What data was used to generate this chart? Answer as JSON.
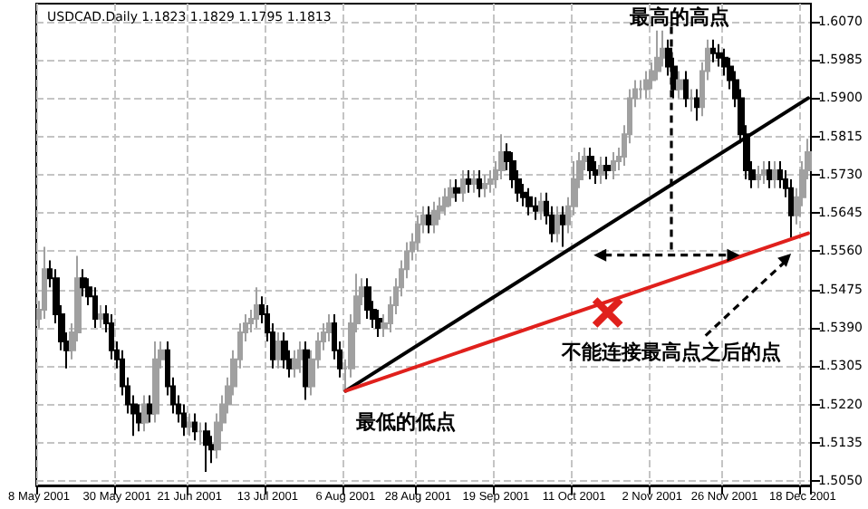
{
  "chart_data": {
    "type": "candlestick",
    "title": "USDCAD.Daily 1.1823 1.1829 1.1795 1.1813",
    "categories": [
      "8 May 2001",
      null,
      null,
      null,
      null,
      null,
      null,
      null,
      null,
      null,
      null,
      null,
      null,
      null,
      "30 May 2001",
      null,
      null,
      null,
      null,
      null,
      null,
      null,
      null,
      null,
      null,
      null,
      null,
      "21 Jun 2001",
      null,
      null,
      null,
      null,
      null,
      null,
      null,
      null,
      null,
      null,
      null,
      null,
      null,
      "13 Jul 2001",
      null,
      null,
      null,
      null,
      null,
      null,
      null,
      null,
      null,
      null,
      null,
      null,
      null,
      "6 Aug 2001",
      null,
      null,
      null,
      null,
      null,
      null,
      null,
      null,
      null,
      null,
      null,
      null,
      "28 Aug 2001",
      null,
      null,
      null,
      null,
      null,
      null,
      null,
      null,
      null,
      null,
      null,
      null,
      null,
      "19 Sep 2001",
      null,
      null,
      null,
      null,
      null,
      null,
      null,
      null,
      null,
      null,
      null,
      null,
      null,
      "11 Oct 2001",
      null,
      null,
      null,
      null,
      null,
      null,
      null,
      null,
      null,
      null,
      null,
      null,
      null,
      "2 Nov 2001",
      null,
      null,
      null,
      null,
      null,
      null,
      null,
      null,
      null,
      null,
      null,
      null,
      "26 Nov 2001",
      null,
      null,
      null,
      null,
      null,
      null,
      null,
      null,
      null,
      null,
      null,
      null,
      null,
      "18 Dec 2001",
      null
    ],
    "series": [
      {
        "type": "candlestick",
        "colors": [
          "#a0a0a0",
          "#a0a0a0",
          "#000000",
          "#000000",
          "#000000",
          "#000000",
          "#a0a0a0",
          "#a0a0a0",
          "#000000",
          "#000000",
          "#000000",
          "#a0a0a0",
          "#000000",
          "#000000",
          "#000000",
          "#000000",
          "#000000",
          "#000000",
          "#000000",
          "#a0a0a0",
          "#000000",
          "#a0a0a0",
          "#a0a0a0",
          "#000000",
          "#000000",
          "#000000",
          "#000000",
          "#a0a0a0",
          "#000000",
          "#a0a0a0",
          "#000000",
          "#000000",
          "#a0a0a0",
          "#a0a0a0",
          "#a0a0a0",
          "#a0a0a0",
          "#a0a0a0",
          "#a0a0a0",
          "#a0a0a0",
          "#a0a0a0",
          "#000000",
          "#000000",
          "#000000",
          "#a0a0a0",
          "#000000",
          "#000000",
          "#a0a0a0",
          "#a0a0a0",
          "#000000",
          "#a0a0a0",
          "#a0a0a0",
          "#a0a0a0",
          "#a0a0a0",
          "#000000",
          "#000000",
          "#a0a0a0",
          "#a0a0a0",
          "#a0a0a0",
          "#a0a0a0",
          "#000000",
          "#000000",
          "#000000",
          "#a0a0a0",
          "#a0a0a0",
          "#a0a0a0",
          "#a0a0a0",
          "#a0a0a0",
          "#a0a0a0",
          "#a0a0a0",
          "#a0a0a0",
          "#000000",
          "#a0a0a0",
          "#a0a0a0",
          "#a0a0a0",
          "#a0a0a0",
          "#000000",
          "#a0a0a0",
          "#000000",
          "#a0a0a0",
          "#000000",
          "#a0a0a0",
          "#a0a0a0",
          "#a0a0a0",
          "#a0a0a0",
          "#000000",
          "#000000",
          "#000000",
          "#000000",
          "#000000",
          "#000000",
          "#a0a0a0",
          "#000000",
          "#000000",
          "#a0a0a0",
          "#000000",
          "#a0a0a0",
          "#a0a0a0",
          "#a0a0a0",
          "#a0a0a0",
          "#000000",
          "#000000",
          "#a0a0a0",
          "#000000",
          "#a0a0a0",
          "#a0a0a0",
          "#a0a0a0",
          "#a0a0a0",
          "#a0a0a0",
          "#a0a0a0",
          "#a0a0a0",
          "#a0a0a0",
          "#a0a0a0",
          "#a0a0a0",
          "#000000",
          "#000000",
          "#a0a0a0",
          "#000000",
          "#a0a0a0",
          "#000000",
          "#a0a0a0",
          "#a0a0a0",
          "#000000",
          "#000000",
          "#000000",
          "#000000",
          "#000000",
          "#000000",
          "#000000",
          "#000000",
          "#a0a0a0",
          "#a0a0a0",
          "#000000",
          "#a0a0a0",
          "#000000",
          "#000000",
          "#000000",
          "#a0a0a0",
          "#a0a0a0",
          "#a0a0a0"
        ],
        "ohlc": [
          [
            1.541,
            1.545,
            1.539,
            1.543
          ],
          [
            1.543,
            1.557,
            1.541,
            1.552
          ],
          [
            1.552,
            1.554,
            1.548,
            1.55
          ],
          [
            1.55,
            1.552,
            1.54,
            1.542
          ],
          [
            1.542,
            1.544,
            1.534,
            1.536
          ],
          [
            1.536,
            1.538,
            1.53,
            1.534
          ],
          [
            1.534,
            1.54,
            1.532,
            1.538
          ],
          [
            1.538,
            1.555,
            1.536,
            1.55
          ],
          [
            1.55,
            1.552,
            1.546,
            1.548
          ],
          [
            1.548,
            1.55,
            1.544,
            1.546
          ],
          [
            1.546,
            1.548,
            1.539,
            1.541
          ],
          [
            1.541,
            1.544,
            1.539,
            1.542
          ],
          [
            1.542,
            1.544,
            1.538,
            1.54
          ],
          [
            1.54,
            1.542,
            1.532,
            1.534
          ],
          [
            1.534,
            1.536,
            1.53,
            1.532
          ],
          [
            1.532,
            1.534,
            1.524,
            1.526
          ],
          [
            1.526,
            1.528,
            1.52,
            1.522
          ],
          [
            1.522,
            1.524,
            1.515,
            1.52
          ],
          [
            1.52,
            1.522,
            1.516,
            1.518
          ],
          [
            1.518,
            1.524,
            1.516,
            1.522
          ],
          [
            1.522,
            1.524,
            1.518,
            1.52
          ],
          [
            1.52,
            1.536,
            1.518,
            1.532
          ],
          [
            1.532,
            1.536,
            1.53,
            1.534
          ],
          [
            1.534,
            1.536,
            1.524,
            1.526
          ],
          [
            1.526,
            1.528,
            1.52,
            1.522
          ],
          [
            1.522,
            1.524,
            1.518,
            1.52
          ],
          [
            1.52,
            1.522,
            1.515,
            1.517
          ],
          [
            1.517,
            1.52,
            1.515,
            1.518
          ],
          [
            1.518,
            1.52,
            1.514,
            1.516
          ],
          [
            1.516,
            1.518,
            1.513,
            1.516
          ],
          [
            1.516,
            1.518,
            1.507,
            1.513
          ],
          [
            1.513,
            1.515,
            1.509,
            1.512
          ],
          [
            1.512,
            1.52,
            1.51,
            1.518
          ],
          [
            1.518,
            1.524,
            1.516,
            1.522
          ],
          [
            1.522,
            1.528,
            1.52,
            1.526
          ],
          [
            1.526,
            1.534,
            1.524,
            1.532
          ],
          [
            1.532,
            1.54,
            1.53,
            1.538
          ],
          [
            1.538,
            1.542,
            1.536,
            1.54
          ],
          [
            1.54,
            1.543,
            1.538,
            1.541
          ],
          [
            1.541,
            1.548,
            1.539,
            1.544
          ],
          [
            1.544,
            1.546,
            1.54,
            1.542
          ],
          [
            1.542,
            1.544,
            1.536,
            1.538
          ],
          [
            1.538,
            1.54,
            1.53,
            1.532
          ],
          [
            1.532,
            1.538,
            1.53,
            1.536
          ],
          [
            1.536,
            1.538,
            1.53,
            1.532
          ],
          [
            1.532,
            1.534,
            1.528,
            1.53
          ],
          [
            1.53,
            1.534,
            1.528,
            1.532
          ],
          [
            1.532,
            1.536,
            1.529,
            1.534
          ],
          [
            1.534,
            1.536,
            1.523,
            1.526
          ],
          [
            1.526,
            1.534,
            1.524,
            1.532
          ],
          [
            1.532,
            1.538,
            1.53,
            1.536
          ],
          [
            1.536,
            1.54,
            1.534,
            1.538
          ],
          [
            1.538,
            1.542,
            1.536,
            1.54
          ],
          [
            1.54,
            1.542,
            1.532,
            1.534
          ],
          [
            1.534,
            1.536,
            1.528,
            1.53
          ],
          [
            1.53,
            1.532,
            1.525,
            1.53
          ],
          [
            1.53,
            1.542,
            1.528,
            1.54
          ],
          [
            1.54,
            1.551,
            1.538,
            1.546
          ],
          [
            1.546,
            1.55,
            1.544,
            1.548
          ],
          [
            1.548,
            1.55,
            1.541,
            1.543
          ],
          [
            1.543,
            1.545,
            1.539,
            1.541
          ],
          [
            1.541,
            1.543,
            1.537,
            1.539
          ],
          [
            1.539,
            1.542,
            1.537,
            1.54
          ],
          [
            1.54,
            1.546,
            1.538,
            1.544
          ],
          [
            1.544,
            1.55,
            1.542,
            1.548
          ],
          [
            1.548,
            1.554,
            1.546,
            1.552
          ],
          [
            1.552,
            1.558,
            1.55,
            1.556
          ],
          [
            1.556,
            1.56,
            1.554,
            1.558
          ],
          [
            1.558,
            1.564,
            1.556,
            1.562
          ],
          [
            1.562,
            1.566,
            1.56,
            1.564
          ],
          [
            1.564,
            1.566,
            1.56,
            1.562
          ],
          [
            1.562,
            1.567,
            1.56,
            1.565
          ],
          [
            1.565,
            1.568,
            1.563,
            1.566
          ],
          [
            1.566,
            1.57,
            1.564,
            1.568
          ],
          [
            1.568,
            1.572,
            1.566,
            1.57
          ],
          [
            1.57,
            1.572,
            1.567,
            1.569
          ],
          [
            1.569,
            1.574,
            1.567,
            1.572
          ],
          [
            1.572,
            1.574,
            1.569,
            1.571
          ],
          [
            1.571,
            1.574,
            1.569,
            1.572
          ],
          [
            1.572,
            1.574,
            1.568,
            1.57
          ],
          [
            1.57,
            1.573,
            1.568,
            1.571
          ],
          [
            1.571,
            1.574,
            1.569,
            1.572
          ],
          [
            1.572,
            1.576,
            1.57,
            1.574
          ],
          [
            1.574,
            1.582,
            1.572,
            1.578
          ],
          [
            1.578,
            1.58,
            1.574,
            1.576
          ],
          [
            1.576,
            1.578,
            1.57,
            1.572
          ],
          [
            1.572,
            1.574,
            1.567,
            1.569
          ],
          [
            1.569,
            1.571,
            1.566,
            1.568
          ],
          [
            1.568,
            1.57,
            1.564,
            1.566
          ],
          [
            1.566,
            1.568,
            1.563,
            1.565
          ],
          [
            1.565,
            1.569,
            1.563,
            1.567
          ],
          [
            1.567,
            1.569,
            1.562,
            1.564
          ],
          [
            1.564,
            1.566,
            1.558,
            1.56
          ],
          [
            1.56,
            1.566,
            1.558,
            1.564
          ],
          [
            1.564,
            1.566,
            1.557,
            1.562
          ],
          [
            1.562,
            1.568,
            1.56,
            1.566
          ],
          [
            1.566,
            1.576,
            1.564,
            1.572
          ],
          [
            1.572,
            1.578,
            1.57,
            1.576
          ],
          [
            1.576,
            1.579,
            1.574,
            1.577
          ],
          [
            1.577,
            1.579,
            1.572,
            1.574
          ],
          [
            1.574,
            1.576,
            1.571,
            1.573
          ],
          [
            1.573,
            1.577,
            1.571,
            1.575
          ],
          [
            1.575,
            1.577,
            1.572,
            1.574
          ],
          [
            1.574,
            1.578,
            1.572,
            1.576
          ],
          [
            1.576,
            1.579,
            1.574,
            1.577
          ],
          [
            1.577,
            1.584,
            1.575,
            1.582
          ],
          [
            1.582,
            1.592,
            1.58,
            1.59
          ],
          [
            1.59,
            1.594,
            1.588,
            1.592
          ],
          [
            1.592,
            1.594,
            1.59,
            1.592
          ],
          [
            1.592,
            1.596,
            1.59,
            1.594
          ],
          [
            1.594,
            1.598,
            1.592,
            1.596
          ],
          [
            1.596,
            1.605,
            1.594,
            1.599
          ],
          [
            1.599,
            1.605,
            1.597,
            1.601
          ],
          [
            1.601,
            1.603,
            1.595,
            1.597
          ],
          [
            1.597,
            1.599,
            1.59,
            1.592
          ],
          [
            1.592,
            1.596,
            1.59,
            1.594
          ],
          [
            1.594,
            1.596,
            1.588,
            1.59
          ],
          [
            1.59,
            1.592,
            1.587,
            1.59
          ],
          [
            1.59,
            1.592,
            1.585,
            1.588
          ],
          [
            1.588,
            1.598,
            1.586,
            1.596
          ],
          [
            1.596,
            1.603,
            1.594,
            1.601
          ],
          [
            1.601,
            1.603,
            1.598,
            1.6
          ],
          [
            1.6,
            1.602,
            1.597,
            1.599
          ],
          [
            1.599,
            1.601,
            1.595,
            1.597
          ],
          [
            1.597,
            1.599,
            1.592,
            1.594
          ],
          [
            1.594,
            1.596,
            1.588,
            1.59
          ],
          [
            1.59,
            1.592,
            1.58,
            1.582
          ],
          [
            1.582,
            1.584,
            1.572,
            1.574
          ],
          [
            1.574,
            1.576,
            1.57,
            1.572
          ],
          [
            1.572,
            1.575,
            1.57,
            1.573
          ],
          [
            1.573,
            1.576,
            1.571,
            1.574
          ],
          [
            1.574,
            1.576,
            1.57,
            1.572
          ],
          [
            1.572,
            1.576,
            1.57,
            1.574
          ],
          [
            1.574,
            1.576,
            1.57,
            1.572
          ],
          [
            1.572,
            1.574,
            1.568,
            1.57
          ],
          [
            1.57,
            1.572,
            1.559,
            1.564
          ],
          [
            1.564,
            1.57,
            1.562,
            1.568
          ],
          [
            1.568,
            1.576,
            1.566,
            1.574
          ],
          [
            1.574,
            1.581,
            1.572,
            1.578
          ]
        ]
      },
      {
        "type": "line",
        "color": "#000000",
        "values": [
          null,
          null,
          null,
          null,
          null,
          null,
          null,
          null,
          null,
          null,
          null,
          null,
          null,
          null,
          null,
          null,
          null,
          null,
          null,
          null,
          null,
          null,
          null,
          null,
          null,
          null,
          null,
          null,
          null,
          null,
          null,
          null,
          null,
          null,
          null,
          null,
          null,
          null,
          null,
          null,
          null,
          null,
          null,
          null,
          null,
          null,
          null,
          null,
          null,
          null,
          null,
          null,
          null,
          null,
          null,
          1.525,
          null,
          null,
          null,
          null,
          null,
          null,
          null,
          null,
          null,
          null,
          null,
          null,
          null,
          null,
          null,
          null,
          null,
          null,
          null,
          null,
          null,
          null,
          null,
          null,
          null,
          null,
          null,
          null,
          null,
          null,
          null,
          null,
          null,
          null,
          null,
          null,
          null,
          null,
          null,
          null,
          null,
          null,
          null,
          null,
          null,
          null,
          null,
          null,
          null,
          null,
          null,
          null,
          null,
          null,
          null,
          null,
          null,
          null,
          null,
          null,
          null,
          null,
          null,
          null,
          null,
          null,
          null,
          null,
          null,
          null,
          null,
          null,
          null,
          null,
          null,
          null,
          null,
          null,
          null,
          null,
          null,
          null,
          1.59
        ]
      },
      {
        "type": "line",
        "color": "#e0201c",
        "values": [
          null,
          null,
          null,
          null,
          null,
          null,
          null,
          null,
          null,
          null,
          null,
          null,
          null,
          null,
          null,
          null,
          null,
          null,
          null,
          null,
          null,
          null,
          null,
          null,
          null,
          null,
          null,
          null,
          null,
          null,
          null,
          null,
          null,
          null,
          null,
          null,
          null,
          null,
          null,
          null,
          null,
          null,
          null,
          null,
          null,
          null,
          null,
          null,
          null,
          null,
          null,
          null,
          null,
          null,
          null,
          1.525,
          null,
          null,
          null,
          null,
          null,
          null,
          null,
          null,
          null,
          null,
          null,
          null,
          null,
          null,
          null,
          null,
          null,
          null,
          null,
          null,
          null,
          null,
          null,
          null,
          null,
          null,
          null,
          null,
          null,
          null,
          null,
          null,
          null,
          null,
          null,
          null,
          null,
          null,
          null,
          null,
          null,
          null,
          null,
          null,
          null,
          null,
          null,
          null,
          null,
          null,
          null,
          null,
          null,
          null,
          null,
          null,
          null,
          null,
          null,
          null,
          null,
          null,
          null,
          null,
          null,
          null,
          null,
          null,
          null,
          null,
          null,
          null,
          null,
          null,
          null,
          null,
          null,
          null,
          null,
          null,
          null,
          null,
          1.56
        ]
      }
    ],
    "ylim": [
      1.504,
      1.611
    ],
    "yticks": [
      {
        "value": 1.607,
        "label": "1.6070"
      },
      {
        "value": 1.5985,
        "label": "1.5985"
      },
      {
        "value": 1.59,
        "label": "1.5900"
      },
      {
        "value": 1.5815,
        "label": "1.5815"
      },
      {
        "value": 1.573,
        "label": "1.5730"
      },
      {
        "value": 1.5645,
        "label": "1.5645"
      },
      {
        "value": 1.556,
        "label": "1.5560"
      },
      {
        "value": 1.5475,
        "label": "1.5475"
      },
      {
        "value": 1.539,
        "label": "1.5390"
      },
      {
        "value": 1.5305,
        "label": "1.5305"
      },
      {
        "value": 1.522,
        "label": "1.5220"
      },
      {
        "value": 1.5135,
        "label": "1.5135"
      },
      {
        "value": 1.505,
        "label": "1.5050"
      }
    ],
    "grid": true,
    "annotations": [
      "最高的高点",
      "最低的低点",
      "不能连接最高点之后的点"
    ]
  }
}
